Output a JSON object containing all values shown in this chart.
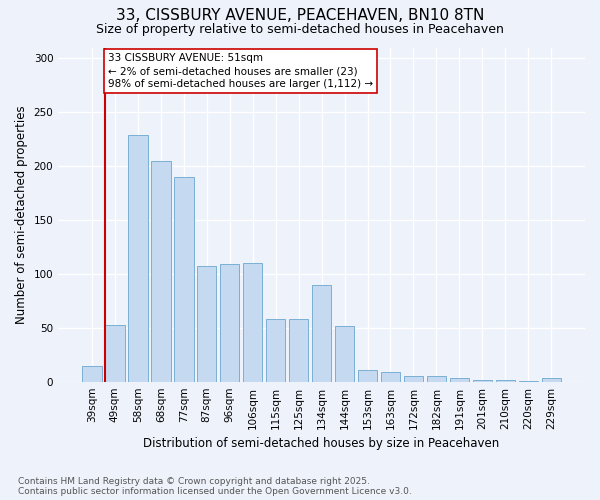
{
  "title": "33, CISSBURY AVENUE, PEACEHAVEN, BN10 8TN",
  "subtitle": "Size of property relative to semi-detached houses in Peacehaven",
  "xlabel": "Distribution of semi-detached houses by size in Peacehaven",
  "ylabel": "Number of semi-detached properties",
  "categories": [
    "39sqm",
    "49sqm",
    "58sqm",
    "68sqm",
    "77sqm",
    "87sqm",
    "96sqm",
    "106sqm",
    "115sqm",
    "125sqm",
    "134sqm",
    "144sqm",
    "153sqm",
    "163sqm",
    "172sqm",
    "182sqm",
    "191sqm",
    "201sqm",
    "210sqm",
    "220sqm",
    "229sqm"
  ],
  "values": [
    15,
    53,
    229,
    205,
    190,
    107,
    109,
    110,
    58,
    58,
    90,
    52,
    11,
    9,
    5,
    5,
    3,
    2,
    2,
    1,
    3
  ],
  "bar_color": "#c5d9f1",
  "bar_edge_color": "#7bafd4",
  "vline_x_index": 1,
  "vline_color": "#cc0000",
  "annotation_text": "33 CISSBURY AVENUE: 51sqm\n← 2% of semi-detached houses are smaller (23)\n98% of semi-detached houses are larger (1,112) →",
  "annotation_box_color": "white",
  "annotation_box_edge": "#cc0000",
  "footer": "Contains HM Land Registry data © Crown copyright and database right 2025.\nContains public sector information licensed under the Open Government Licence v3.0.",
  "ylim": [
    0,
    310
  ],
  "yticks": [
    0,
    50,
    100,
    150,
    200,
    250,
    300
  ],
  "background_color": "#eef3fb",
  "title_fontsize": 11,
  "subtitle_fontsize": 9,
  "axis_label_fontsize": 8.5,
  "tick_fontsize": 7.5,
  "footer_fontsize": 6.5,
  "annotation_fontsize": 7.5
}
